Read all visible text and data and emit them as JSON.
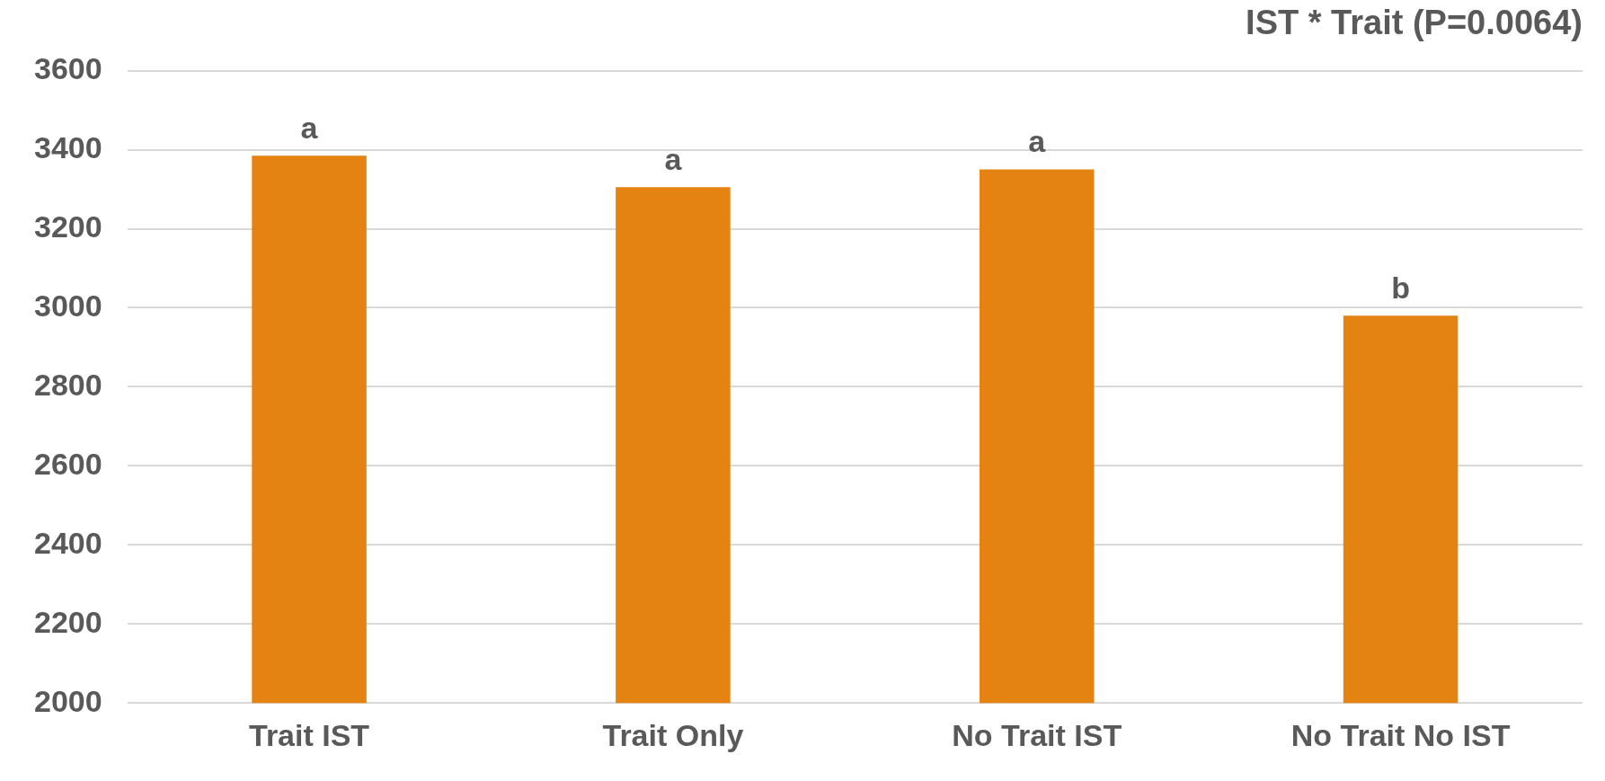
{
  "chart_data": {
    "type": "bar",
    "title": "IST * Trait (P=0.0064)",
    "categories": [
      "Trait IST",
      "Trait Only",
      "No Trait IST",
      "No Trait No IST"
    ],
    "values": [
      3385,
      3305,
      3350,
      2980
    ],
    "color": "#e48212",
    "ylim": [
      2000,
      3600
    ],
    "yticks": [
      2000,
      2200,
      2400,
      2600,
      2800,
      3000,
      3200,
      3400,
      3600
    ],
    "grid": "y",
    "annotations": [
      {
        "text": "a",
        "x": "Trait IST",
        "y": 3385
      },
      {
        "text": "a",
        "x": "Trait Only",
        "y": 3305
      },
      {
        "text": "a",
        "x": "No Trait IST",
        "y": 3350
      },
      {
        "text": "b",
        "x": "No Trait No IST",
        "y": 2980
      }
    ]
  }
}
